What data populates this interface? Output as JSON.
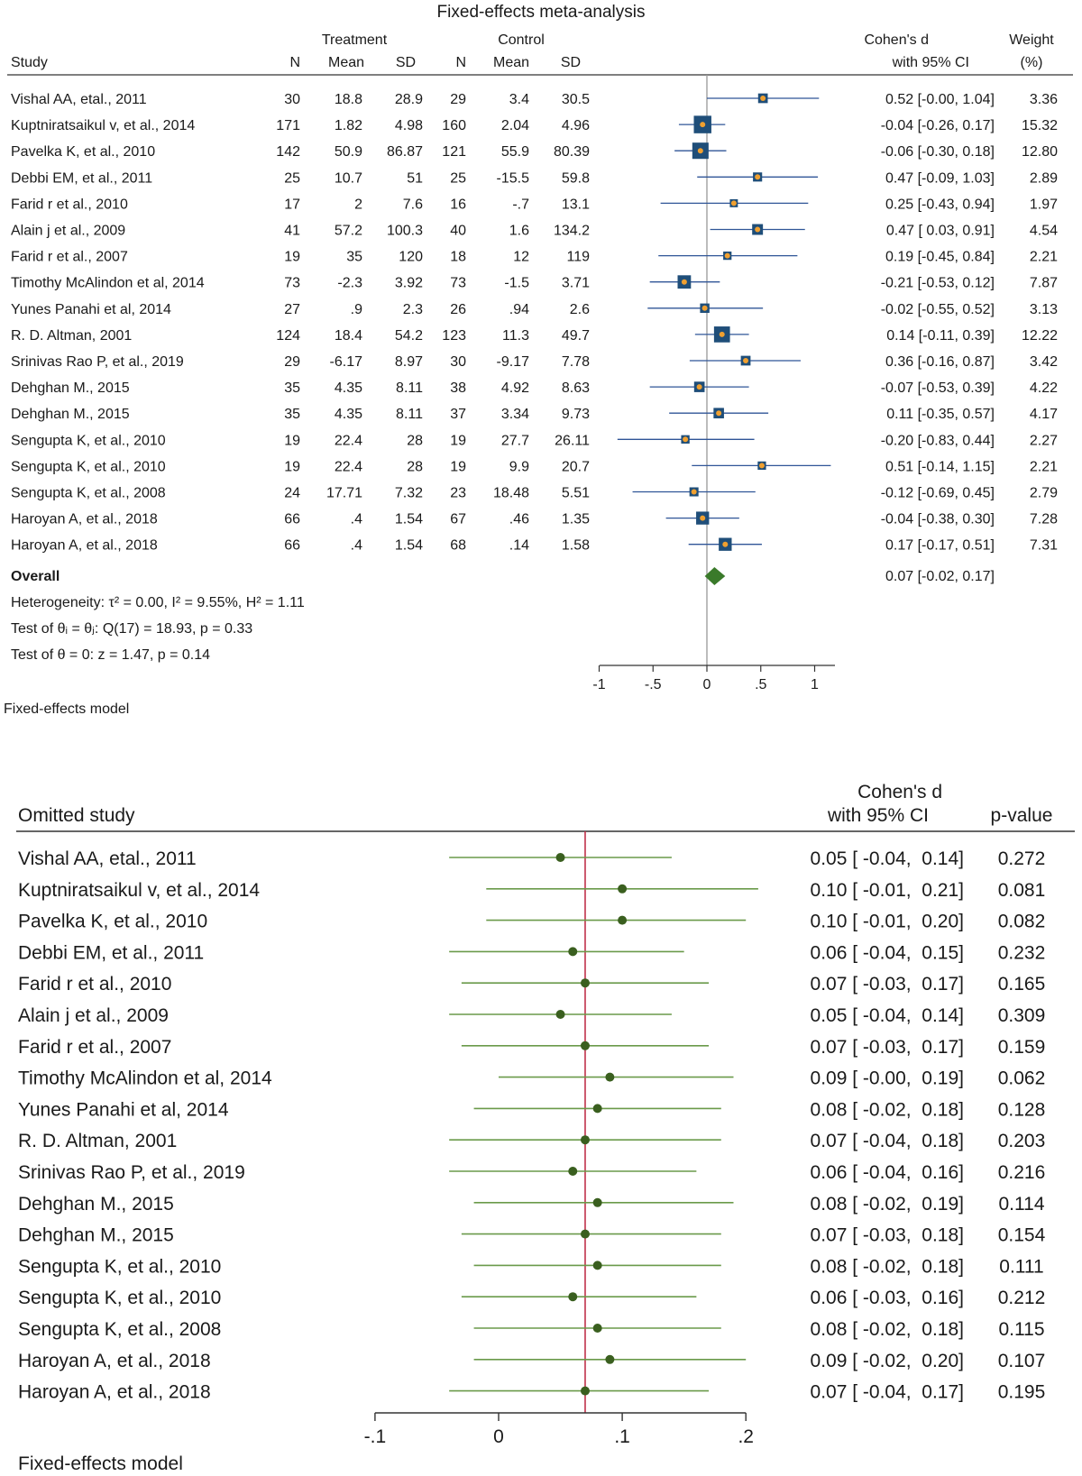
{
  "colors": {
    "box": "#1f4e79",
    "box_dot": "#f0a030",
    "ci_line": "#2f5597",
    "diamond": "#3a7a2a",
    "point_green": "#3a5f1f",
    "line_green": "#6a9a4a",
    "ref_red": "#c0304a",
    "axis_gray": "#999999"
  },
  "chart_data": [
    {
      "type": "forest",
      "title": "Fixed-effects meta-analysis",
      "headers": {
        "study": "Study",
        "treatment": "Treatment",
        "control": "Control",
        "n": "N",
        "mean": "Mean",
        "sd": "SD",
        "effect": "Cohen's d",
        "effect_sub": "with 95% CI",
        "weight": "Weight",
        "weight_sub": "(%)"
      },
      "rows": [
        {
          "study": "Vishal AA, etal., 2011",
          "t_n": "30",
          "t_mean": "18.8",
          "t_sd": "28.9",
          "c_n": "29",
          "c_mean": "3.4",
          "c_sd": "30.5",
          "d": 0.52,
          "lo": -0.0,
          "hi": 1.04,
          "ci_text": "0.52 [-0.00, 1.04]",
          "weight": 3.36,
          "weight_text": "3.36"
        },
        {
          "study": "Kuptniratsaikul v, et al., 2014",
          "t_n": "171",
          "t_mean": "1.82",
          "t_sd": "4.98",
          "c_n": "160",
          "c_mean": "2.04",
          "c_sd": "4.96",
          "d": -0.04,
          "lo": -0.26,
          "hi": 0.17,
          "ci_text": "-0.04 [-0.26, 0.17]",
          "weight": 15.32,
          "weight_text": "15.32"
        },
        {
          "study": "Pavelka K, et al., 2010",
          "t_n": "142",
          "t_mean": "50.9",
          "t_sd": "86.87",
          "c_n": "121",
          "c_mean": "55.9",
          "c_sd": "80.39",
          "d": -0.06,
          "lo": -0.3,
          "hi": 0.18,
          "ci_text": "-0.06 [-0.30, 0.18]",
          "weight": 12.8,
          "weight_text": "12.80"
        },
        {
          "study": "Debbi EM, et al., 2011",
          "t_n": "25",
          "t_mean": "10.7",
          "t_sd": "51",
          "c_n": "25",
          "c_mean": "-15.5",
          "c_sd": "59.8",
          "d": 0.47,
          "lo": -0.09,
          "hi": 1.03,
          "ci_text": "0.47 [-0.09, 1.03]",
          "weight": 2.89,
          "weight_text": "2.89"
        },
        {
          "study": "Farid r et al., 2010",
          "t_n": "17",
          "t_mean": "2",
          "t_sd": "7.6",
          "c_n": "16",
          "c_mean": "-.7",
          "c_sd": "13.1",
          "d": 0.25,
          "lo": -0.43,
          "hi": 0.94,
          "ci_text": "0.25 [-0.43, 0.94]",
          "weight": 1.97,
          "weight_text": "1.97"
        },
        {
          "study": "Alain j et al., 2009",
          "t_n": "41",
          "t_mean": "57.2",
          "t_sd": "100.3",
          "c_n": "40",
          "c_mean": "1.6",
          "c_sd": "134.2",
          "d": 0.47,
          "lo": 0.03,
          "hi": 0.91,
          "ci_text": "0.47 [ 0.03, 0.91]",
          "weight": 4.54,
          "weight_text": "4.54"
        },
        {
          "study": "Farid r et al., 2007",
          "t_n": "19",
          "t_mean": "35",
          "t_sd": "120",
          "c_n": "18",
          "c_mean": "12",
          "c_sd": "119",
          "d": 0.19,
          "lo": -0.45,
          "hi": 0.84,
          "ci_text": "0.19 [-0.45, 0.84]",
          "weight": 2.21,
          "weight_text": "2.21"
        },
        {
          "study": "Timothy McAlindon et al, 2014",
          "t_n": "73",
          "t_mean": "-2.3",
          "t_sd": "3.92",
          "c_n": "73",
          "c_mean": "-1.5",
          "c_sd": "3.71",
          "d": -0.21,
          "lo": -0.53,
          "hi": 0.12,
          "ci_text": "-0.21 [-0.53, 0.12]",
          "weight": 7.87,
          "weight_text": "7.87"
        },
        {
          "study": "Yunes Panahi et al, 2014",
          "t_n": "27",
          "t_mean": ".9",
          "t_sd": "2.3",
          "c_n": "26",
          "c_mean": ".94",
          "c_sd": "2.6",
          "d": -0.02,
          "lo": -0.55,
          "hi": 0.52,
          "ci_text": "-0.02 [-0.55, 0.52]",
          "weight": 3.13,
          "weight_text": "3.13"
        },
        {
          "study": "R. D. Altman, 2001",
          "t_n": "124",
          "t_mean": "18.4",
          "t_sd": "54.2",
          "c_n": "123",
          "c_mean": "11.3",
          "c_sd": "49.7",
          "d": 0.14,
          "lo": -0.11,
          "hi": 0.39,
          "ci_text": "0.14 [-0.11, 0.39]",
          "weight": 12.22,
          "weight_text": "12.22"
        },
        {
          "study": "Srinivas Rao P, et al., 2019",
          "t_n": "29",
          "t_mean": "-6.17",
          "t_sd": "8.97",
          "c_n": "30",
          "c_mean": "-9.17",
          "c_sd": "7.78",
          "d": 0.36,
          "lo": -0.16,
          "hi": 0.87,
          "ci_text": "0.36 [-0.16, 0.87]",
          "weight": 3.42,
          "weight_text": "3.42"
        },
        {
          "study": "Dehghan M., 2015",
          "t_n": "35",
          "t_mean": "4.35",
          "t_sd": "8.11",
          "c_n": "38",
          "c_mean": "4.92",
          "c_sd": "8.63",
          "d": -0.07,
          "lo": -0.53,
          "hi": 0.39,
          "ci_text": "-0.07 [-0.53, 0.39]",
          "weight": 4.22,
          "weight_text": "4.22"
        },
        {
          "study": "Dehghan M., 2015",
          "t_n": "35",
          "t_mean": "4.35",
          "t_sd": "8.11",
          "c_n": "37",
          "c_mean": "3.34",
          "c_sd": "9.73",
          "d": 0.11,
          "lo": -0.35,
          "hi": 0.57,
          "ci_text": "0.11 [-0.35, 0.57]",
          "weight": 4.17,
          "weight_text": "4.17"
        },
        {
          "study": "Sengupta K, et al., 2010",
          "t_n": "19",
          "t_mean": "22.4",
          "t_sd": "28",
          "c_n": "19",
          "c_mean": "27.7",
          "c_sd": "26.11",
          "d": -0.2,
          "lo": -0.83,
          "hi": 0.44,
          "ci_text": "-0.20 [-0.83, 0.44]",
          "weight": 2.27,
          "weight_text": "2.27"
        },
        {
          "study": "Sengupta K, et al., 2010",
          "t_n": "19",
          "t_mean": "22.4",
          "t_sd": "28",
          "c_n": "19",
          "c_mean": "9.9",
          "c_sd": "20.7",
          "d": 0.51,
          "lo": -0.14,
          "hi": 1.15,
          "ci_text": "0.51 [-0.14, 1.15]",
          "weight": 2.21,
          "weight_text": "2.21"
        },
        {
          "study": "Sengupta K, et al., 2008",
          "t_n": "24",
          "t_mean": "17.71",
          "t_sd": "7.32",
          "c_n": "23",
          "c_mean": "18.48",
          "c_sd": "5.51",
          "d": -0.12,
          "lo": -0.69,
          "hi": 0.45,
          "ci_text": "-0.12 [-0.69, 0.45]",
          "weight": 2.79,
          "weight_text": "2.79"
        },
        {
          "study": "Haroyan A, et al., 2018",
          "t_n": "66",
          "t_mean": ".4",
          "t_sd": "1.54",
          "c_n": "67",
          "c_mean": ".46",
          "c_sd": "1.35",
          "d": -0.04,
          "lo": -0.38,
          "hi": 0.3,
          "ci_text": "-0.04 [-0.38, 0.30]",
          "weight": 7.28,
          "weight_text": "7.28"
        },
        {
          "study": "Haroyan A, et al., 2018",
          "t_n": "66",
          "t_mean": ".4",
          "t_sd": "1.54",
          "c_n": "68",
          "c_mean": ".14",
          "c_sd": "1.58",
          "d": 0.17,
          "lo": -0.17,
          "hi": 0.51,
          "ci_text": "0.17 [-0.17, 0.51]",
          "weight": 7.31,
          "weight_text": "7.31"
        }
      ],
      "overall": {
        "label": "Overall",
        "d": 0.07,
        "lo": -0.02,
        "hi": 0.17,
        "ci_text": "0.07 [-0.02, 0.17]"
      },
      "notes": [
        "Heterogeneity: τ² = 0.00, I² = 9.55%, H² = 1.11",
        "Test of θᵢ = θⱼ: Q(17) = 18.93, p = 0.33",
        "Test of θ = 0: z = 1.47, p = 0.14"
      ],
      "xaxis": {
        "min": -1,
        "max": 1.15,
        "ticks": [
          -1,
          -0.5,
          0,
          0.5,
          1
        ],
        "tick_labels": [
          "-1",
          "-.5",
          "0",
          ".5",
          "1"
        ],
        "reference": 0
      },
      "footer": "Fixed-effects model"
    },
    {
      "type": "leave-one-out",
      "headers": {
        "study": "Omitted study",
        "effect": "Cohen's d",
        "effect_sub": "with 95% CI",
        "p": "p-value"
      },
      "rows": [
        {
          "study": "Vishal AA, etal., 2011",
          "d": 0.05,
          "lo": -0.04,
          "hi": 0.14,
          "ci_text": "0.05 [ -0.04,  0.14]",
          "p": "0.272"
        },
        {
          "study": "Kuptniratsaikul v, et al., 2014",
          "d": 0.1,
          "lo": -0.01,
          "hi": 0.21,
          "ci_text": "0.10 [ -0.01,  0.21]",
          "p": "0.081"
        },
        {
          "study": "Pavelka K, et al., 2010",
          "d": 0.1,
          "lo": -0.01,
          "hi": 0.2,
          "ci_text": "0.10 [ -0.01,  0.20]",
          "p": "0.082"
        },
        {
          "study": "Debbi EM, et al., 2011",
          "d": 0.06,
          "lo": -0.04,
          "hi": 0.15,
          "ci_text": "0.06 [ -0.04,  0.15]",
          "p": "0.232"
        },
        {
          "study": "Farid r et al., 2010",
          "d": 0.07,
          "lo": -0.03,
          "hi": 0.17,
          "ci_text": "0.07 [ -0.03,  0.17]",
          "p": "0.165"
        },
        {
          "study": "Alain j et al., 2009",
          "d": 0.05,
          "lo": -0.04,
          "hi": 0.14,
          "ci_text": "0.05 [ -0.04,  0.14]",
          "p": "0.309"
        },
        {
          "study": "Farid r et al., 2007",
          "d": 0.07,
          "lo": -0.03,
          "hi": 0.17,
          "ci_text": "0.07 [ -0.03,  0.17]",
          "p": "0.159"
        },
        {
          "study": "Timothy McAlindon et al, 2014",
          "d": 0.09,
          "lo": -0.0,
          "hi": 0.19,
          "ci_text": "0.09 [ -0.00,  0.19]",
          "p": "0.062"
        },
        {
          "study": "Yunes Panahi et al, 2014",
          "d": 0.08,
          "lo": -0.02,
          "hi": 0.18,
          "ci_text": "0.08 [ -0.02,  0.18]",
          "p": "0.128"
        },
        {
          "study": "R. D. Altman, 2001",
          "d": 0.07,
          "lo": -0.04,
          "hi": 0.18,
          "ci_text": "0.07 [ -0.04,  0.18]",
          "p": "0.203"
        },
        {
          "study": "Srinivas Rao P, et al., 2019",
          "d": 0.06,
          "lo": -0.04,
          "hi": 0.16,
          "ci_text": "0.06 [ -0.04,  0.16]",
          "p": "0.216"
        },
        {
          "study": "Dehghan M., 2015",
          "d": 0.08,
          "lo": -0.02,
          "hi": 0.19,
          "ci_text": "0.08 [ -0.02,  0.19]",
          "p": "0.114"
        },
        {
          "study": "Dehghan M., 2015",
          "d": 0.07,
          "lo": -0.03,
          "hi": 0.18,
          "ci_text": "0.07 [ -0.03,  0.18]",
          "p": "0.154"
        },
        {
          "study": "Sengupta K, et al., 2010",
          "d": 0.08,
          "lo": -0.02,
          "hi": 0.18,
          "ci_text": "0.08 [ -0.02,  0.18]",
          "p": "0.111"
        },
        {
          "study": "Sengupta K, et al., 2010",
          "d": 0.06,
          "lo": -0.03,
          "hi": 0.16,
          "ci_text": "0.06 [ -0.03,  0.16]",
          "p": "0.212"
        },
        {
          "study": "Sengupta K, et al., 2008",
          "d": 0.08,
          "lo": -0.02,
          "hi": 0.18,
          "ci_text": "0.08 [ -0.02,  0.18]",
          "p": "0.115"
        },
        {
          "study": "Haroyan A, et al., 2018",
          "d": 0.09,
          "lo": -0.02,
          "hi": 0.2,
          "ci_text": "0.09 [ -0.02,  0.20]",
          "p": "0.107"
        },
        {
          "study": "Haroyan A, et al., 2018",
          "d": 0.07,
          "lo": -0.04,
          "hi": 0.17,
          "ci_text": "0.07 [ -0.04,  0.17]",
          "p": "0.195"
        }
      ],
      "reference": 0.07,
      "xaxis": {
        "min": -0.1,
        "max": 0.2,
        "ticks": [
          -0.1,
          0,
          0.1,
          0.2
        ],
        "tick_labels": [
          "-.1",
          "0",
          ".1",
          ".2"
        ]
      },
      "footer": "Fixed-effects model"
    }
  ]
}
